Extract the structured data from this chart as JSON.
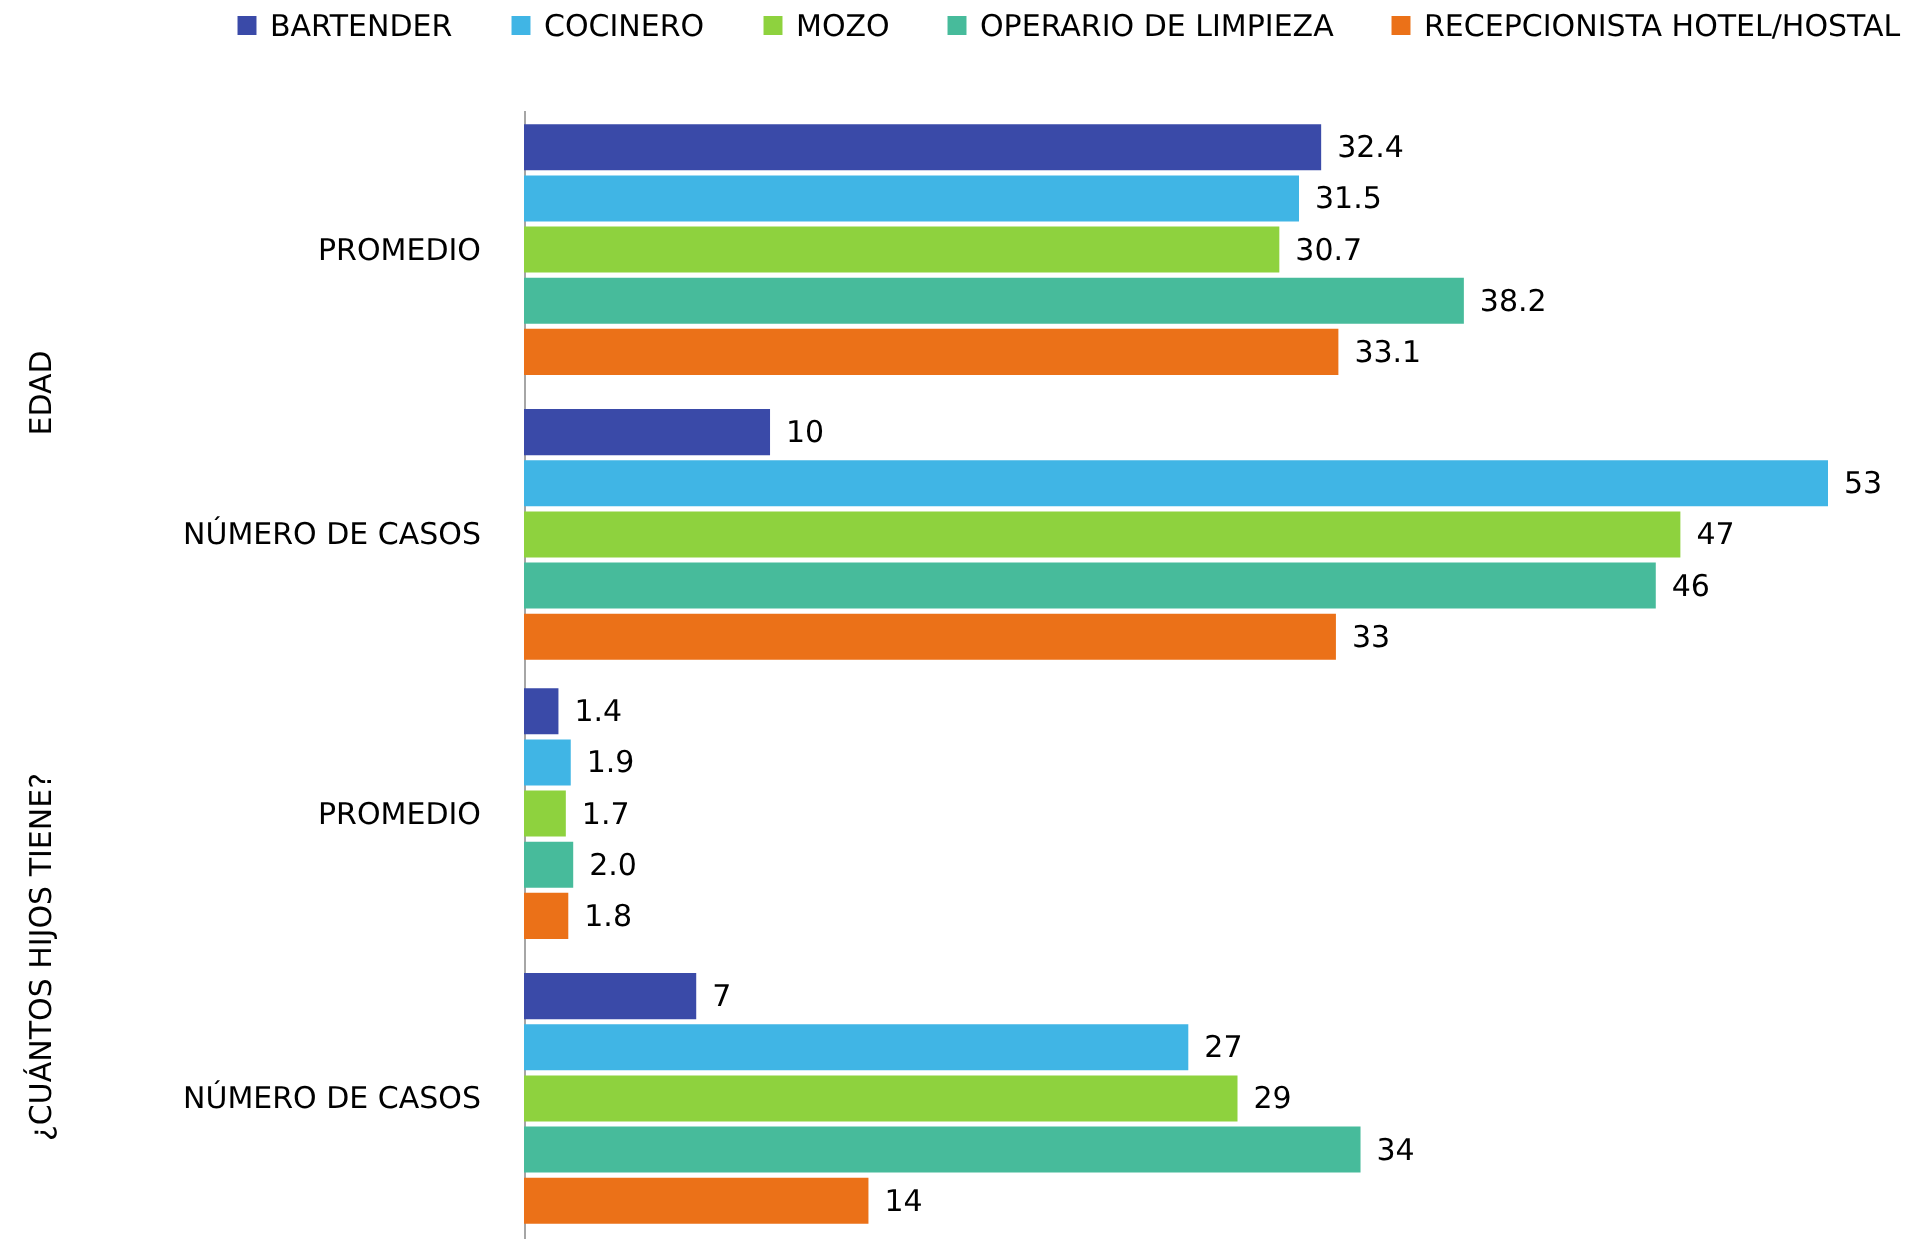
{
  "chart_data": [
    {
      "type": "bar",
      "orientation": "horizontal",
      "ylabel": "EDAD",
      "categories": [
        "PROMEDIO",
        "NÚMERO DE CASOS"
      ],
      "series": [
        {
          "name": "BARTENDER",
          "color": "#3a4aa8",
          "values": [
            32.4,
            10
          ]
        },
        {
          "name": "COCINERO",
          "color": "#40b5e5",
          "values": [
            31.5,
            53
          ]
        },
        {
          "name": "MOZO",
          "color": "#8ed23e",
          "values": [
            30.7,
            47
          ]
        },
        {
          "name": "OPERARIO DE LIMPIEZA",
          "color": "#47bb9b",
          "values": [
            38.2,
            46
          ]
        },
        {
          "name": "RECEPCIONISTA HOTEL/HOSTAL",
          "color": "#eb7118",
          "values": [
            33.1,
            33
          ]
        }
      ],
      "data_labels": true,
      "legend": "top",
      "tick_labels": "y"
    },
    {
      "type": "bar",
      "orientation": "horizontal",
      "ylabel": "¿CUÁNTOS HIJOS TIENE?",
      "categories": [
        "PROMEDIO",
        "NÚMERO DE CASOS"
      ],
      "series": [
        {
          "name": "BARTENDER",
          "color": "#3a4aa8",
          "values": [
            1.4,
            7
          ],
          "value_labels": [
            "1.4",
            "7"
          ]
        },
        {
          "name": "COCINERO",
          "color": "#40b5e5",
          "values": [
            1.9,
            27
          ],
          "value_labels": [
            "1.9",
            "27"
          ]
        },
        {
          "name": "MOZO",
          "color": "#8ed23e",
          "values": [
            1.7,
            29
          ],
          "value_labels": [
            "1.7",
            "29"
          ]
        },
        {
          "name": "OPERARIO DE LIMPIEZA",
          "color": "#47bb9b",
          "values": [
            2.0,
            34
          ],
          "value_labels": [
            "2.0",
            "34"
          ]
        },
        {
          "name": "RECEPCIONISTA HOTEL/HOSTAL",
          "color": "#eb7118",
          "values": [
            1.8,
            14
          ],
          "value_labels": [
            "1.8",
            "14"
          ]
        }
      ],
      "legend": "top",
      "tick_labels": "y"
    }
  ]
}
